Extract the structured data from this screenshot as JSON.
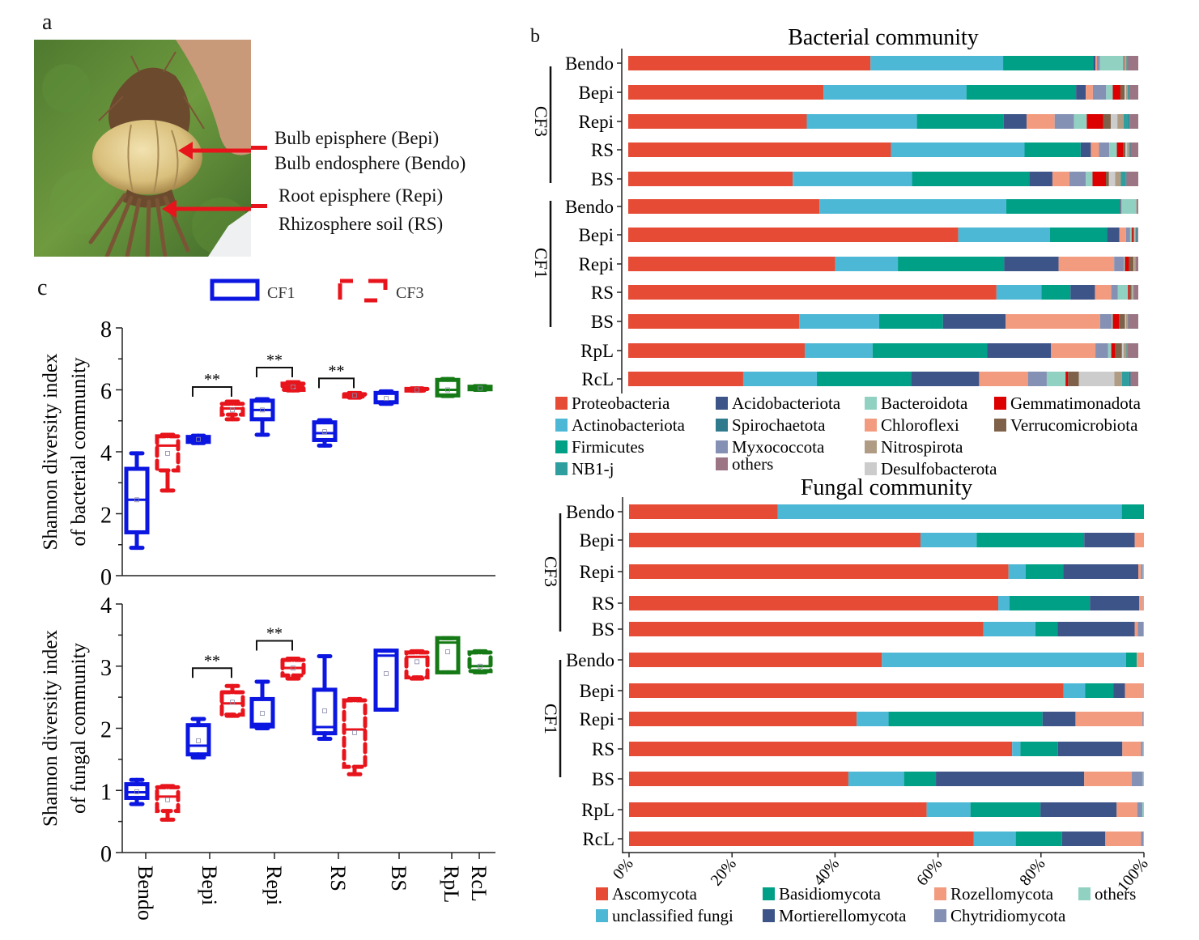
{
  "panel_a": {
    "label": "a",
    "annotations": [
      "Bulb episphere (Bepi)",
      "Bulb endosphere (Bendo)",
      "Root episphere (Repi)",
      "Rhizosphere soil (RS)"
    ],
    "photo_description": "Lily bulb with roots held by hand, green vegetation background",
    "arrow_color": "#e8141c"
  },
  "panel_b_label": "b",
  "panel_c_label": "c",
  "chart_data": [
    {
      "id": "bacterial",
      "type": "bar",
      "orientation": "horizontal-stacked-percent",
      "title": "Bacterial community",
      "categories": [
        "Bendo",
        "Bepi",
        "Repi",
        "RS",
        "BS",
        "Bendo",
        "Bepi",
        "Repi",
        "RS",
        "BS",
        "RpL",
        "RcL"
      ],
      "groups": [
        {
          "name": "CF3",
          "rows": [
            0,
            4
          ]
        },
        {
          "name": "CF1",
          "rows": [
            5,
            9
          ]
        }
      ],
      "xlim": [
        0,
        100
      ],
      "series": [
        {
          "name": "Proteobacteria",
          "color": "#e64b35",
          "values": [
            47.5,
            38.3,
            35.0,
            51.5,
            32.0,
            37.5,
            64.7,
            40.3,
            72.2,
            33.5,
            34.6,
            22.6
          ]
        },
        {
          "name": "Actinobacteriota",
          "color": "#4db8d6",
          "values": [
            26.0,
            28.0,
            21.6,
            26.2,
            23.2,
            36.6,
            18.0,
            12.2,
            8.8,
            15.7,
            13.3,
            14.5
          ]
        },
        {
          "name": "Firmicutes",
          "color": "#00a087",
          "values": [
            17.7,
            21.5,
            17.0,
            11.0,
            22.8,
            22.3,
            11.2,
            20.7,
            5.7,
            12.5,
            22.5,
            18.5
          ]
        },
        {
          "name": "Acidobacteriota",
          "color": "#3c5488",
          "values": [
            0.4,
            1.9,
            4.5,
            2.0,
            4.5,
            0.2,
            2.4,
            10.6,
            4.8,
            12.3,
            12.5,
            13.4
          ]
        },
        {
          "name": "Chloroflexi",
          "color": "#f39b7f",
          "values": [
            0.3,
            1.4,
            5.5,
            1.6,
            3.3,
            0.1,
            1.3,
            10.8,
            3.2,
            18.5,
            8.7,
            9.6
          ]
        },
        {
          "name": "Myxococcota",
          "color": "#8491b4",
          "values": [
            0.6,
            2.6,
            3.8,
            2.0,
            3.2,
            0.1,
            0.8,
            1.9,
            1.3,
            2.3,
            2.5,
            3.7
          ]
        },
        {
          "name": "Bacteroidota",
          "color": "#91d1c2",
          "values": [
            4.6,
            1.3,
            2.5,
            1.5,
            1.3,
            2.8,
            0.3,
            0.2,
            2.0,
            0.2,
            0.6,
            3.7
          ]
        },
        {
          "name": "Gemmatimonadota",
          "color": "#dc0000",
          "values": [
            0.1,
            1.5,
            3.2,
            1.3,
            2.6,
            0,
            0.2,
            0.8,
            0.3,
            1.2,
            0.8,
            0.5
          ]
        },
        {
          "name": "Verrucomicrobiota",
          "color": "#7e6148",
          "values": [
            0.1,
            0.8,
            1.5,
            0.4,
            0.6,
            0,
            0.3,
            0.9,
            0.4,
            1.2,
            1.3,
            2.1
          ]
        },
        {
          "name": "Desulfobacterota",
          "color": "#cccccc",
          "values": [
            0.1,
            0.3,
            1.3,
            0.3,
            1.2,
            0,
            0.1,
            0.1,
            0.1,
            0.2,
            0.3,
            7.0
          ]
        },
        {
          "name": "Nitrospirota",
          "color": "#b09c85",
          "values": [
            0.3,
            0.3,
            1.2,
            0.4,
            1.1,
            0.1,
            0.2,
            0.2,
            0.2,
            0.3,
            0.6,
            1.5
          ]
        },
        {
          "name": "NB1-j",
          "color": "#2e9e9e",
          "values": [
            0.2,
            0.2,
            1.0,
            0.2,
            1.0,
            0,
            0.1,
            0.1,
            0.1,
            0.1,
            0.1,
            1.4
          ]
        },
        {
          "name": "Spirochaetota",
          "color": "#2f7a8c",
          "values": [
            0.1,
            0.1,
            0.2,
            0.1,
            0.1,
            0,
            0.1,
            0,
            0,
            0,
            0,
            0.3
          ]
        },
        {
          "name": "others",
          "color": "#9c7585",
          "values": [
            2.0,
            1.8,
            1.7,
            1.5,
            2.3,
            0.3,
            0.3,
            0.5,
            0.9,
            2.0,
            2.2,
            1.5
          ]
        }
      ],
      "legend": [
        "Proteobacteria",
        "Actinobacteriota",
        "Firmicutes",
        "NB1-j",
        "Acidobacteriota",
        "Spirochaetota",
        "Myxococcota",
        "others",
        "Bacteroidota",
        "Chloroflexi",
        "Nitrospirota",
        "Desulfobacterota",
        "Gemmatimonadota",
        "Verrucomicrobiota"
      ],
      "legend_placement": "bottom"
    },
    {
      "id": "fungal",
      "type": "bar",
      "orientation": "horizontal-stacked-percent",
      "title": "Fungal community",
      "categories": [
        "Bendo",
        "Bepi",
        "Repi",
        "RS",
        "BS",
        "Bendo",
        "Bepi",
        "Repi",
        "RS",
        "BS",
        "RpL",
        "RcL"
      ],
      "groups": [
        {
          "name": "CF3",
          "rows": [
            0,
            4
          ]
        },
        {
          "name": "CF1",
          "rows": [
            5,
            9
          ]
        }
      ],
      "xlim": [
        0,
        100
      ],
      "xticks": [
        "0%",
        "20%",
        "40%",
        "60%",
        "80%",
        "100%"
      ],
      "series": [
        {
          "name": "Ascomycota",
          "color": "#e64b35",
          "values": [
            28.9,
            56.6,
            73.7,
            71.7,
            68.8,
            49.1,
            84.4,
            44.2,
            74.4,
            42.6,
            57.8,
            66.9
          ]
        },
        {
          "name": "unclassified fungi",
          "color": "#4db8d6",
          "values": [
            66.8,
            10.9,
            3.3,
            2.2,
            10.1,
            47.4,
            4.2,
            6.2,
            1.6,
            10.8,
            8.5,
            8.2
          ]
        },
        {
          "name": "Basidiomycota",
          "color": "#00a087",
          "values": [
            4.3,
            20.9,
            7.3,
            15.6,
            4.3,
            2.1,
            5.5,
            29.9,
            7.3,
            6.2,
            13.6,
            9.0
          ]
        },
        {
          "name": "Mortierellomycota",
          "color": "#3c5488",
          "values": [
            0,
            9.8,
            14.6,
            9.6,
            15.0,
            0,
            2.2,
            6.4,
            12.5,
            28.8,
            14.8,
            8.4
          ]
        },
        {
          "name": "Rozellomycota",
          "color": "#f39b7f",
          "values": [
            0,
            1.8,
            0.5,
            0.7,
            0.6,
            1.4,
            3.5,
            13.0,
            3.6,
            9.2,
            4.0,
            6.9
          ]
        },
        {
          "name": "Chytridiomycota",
          "color": "#8491b4",
          "values": [
            0,
            0,
            0.4,
            0.1,
            1.1,
            0,
            0.1,
            0.2,
            0.4,
            2.2,
            1.0,
            0.5
          ]
        },
        {
          "name": "others",
          "color": "#91d1c2",
          "values": [
            0,
            0,
            0.2,
            0.1,
            0.1,
            0,
            0.1,
            0.1,
            0.2,
            0.2,
            0.3,
            0.1
          ]
        }
      ],
      "legend": [
        "Ascomycota",
        "unclassified fungi",
        "Basidiomycota",
        "Mortierellomycota",
        "Rozellomycota",
        "Chytridiomycota",
        "others"
      ],
      "legend_placement": "bottom"
    },
    {
      "id": "shannon-bacterial",
      "type": "box",
      "ylabel": "Shannon diversity index of bacterial community",
      "ylim": [
        0,
        8
      ],
      "yticks": [
        0,
        2,
        4,
        6,
        8
      ],
      "categories": [
        "Bendo",
        "Bepi",
        "Repi",
        "RS",
        "BS",
        "RpL",
        "RcL"
      ],
      "legend": [
        {
          "name": "CF1",
          "color": "#0b16e0",
          "style": "solid"
        },
        {
          "name": "CF3",
          "color": "#e8141c",
          "style": "dashed"
        }
      ],
      "boxes": [
        {
          "category": "Bendo",
          "group": "CF1",
          "color": "#0b16e0",
          "min": 0.9,
          "q1": 1.4,
          "median": 2.45,
          "q3": 3.45,
          "max": 3.95,
          "mean": 2.45
        },
        {
          "category": "Bendo",
          "group": "CF3",
          "color": "#e8141c",
          "min": 2.75,
          "q1": 3.4,
          "median": 4.2,
          "q3": 4.5,
          "max": 4.55,
          "mean": 3.95
        },
        {
          "category": "Bepi",
          "group": "CF1",
          "color": "#0b16e0",
          "min": 4.28,
          "q1": 4.32,
          "median": 4.4,
          "q3": 4.48,
          "max": 4.52,
          "mean": 4.4
        },
        {
          "category": "Bepi",
          "group": "CF3",
          "color": "#e8141c",
          "min": 5.05,
          "q1": 5.2,
          "median": 5.4,
          "q3": 5.55,
          "max": 5.62,
          "mean": 5.35
        },
        {
          "category": "Repi",
          "group": "CF1",
          "color": "#0b16e0",
          "min": 4.55,
          "q1": 5.05,
          "median": 5.35,
          "q3": 5.65,
          "max": 5.7,
          "mean": 5.35
        },
        {
          "category": "Repi",
          "group": "CF3",
          "color": "#e8141c",
          "min": 5.98,
          "q1": 6.0,
          "median": 6.1,
          "q3": 6.2,
          "max": 6.25,
          "mean": 6.1
        },
        {
          "category": "RS",
          "group": "CF1",
          "color": "#0b16e0",
          "min": 4.2,
          "q1": 4.38,
          "median": 4.6,
          "q3": 4.95,
          "max": 5.02,
          "mean": 4.65
        },
        {
          "category": "RS",
          "group": "CF3",
          "color": "#e8141c",
          "min": 5.75,
          "q1": 5.78,
          "median": 5.82,
          "q3": 5.86,
          "max": 5.9,
          "mean": 5.82
        },
        {
          "category": "BS",
          "group": "CF1",
          "color": "#0b16e0",
          "min": 5.55,
          "q1": 5.6,
          "median": 5.6,
          "q3": 5.9,
          "max": 5.95,
          "mean": 5.72
        },
        {
          "category": "BS",
          "group": "CF3",
          "color": "#e8141c",
          "min": 5.97,
          "q1": 5.98,
          "median": 6.0,
          "q3": 6.03,
          "max": 6.05,
          "mean": 6.0
        },
        {
          "category": "RpL",
          "group": "CF",
          "color": "#157a15",
          "min": 5.8,
          "q1": 5.82,
          "median": 6.0,
          "q3": 6.32,
          "max": 6.35,
          "mean": 6.0
        },
        {
          "category": "RcL",
          "group": "CF",
          "color": "#157a15",
          "min": 6.0,
          "q1": 6.02,
          "median": 6.05,
          "q3": 6.1,
          "max": 6.12,
          "mean": 6.05
        }
      ],
      "significance": [
        {
          "between": "Bepi CF1 vs CF3",
          "label": "**"
        },
        {
          "between": "Repi CF1 vs CF3",
          "label": "**"
        },
        {
          "between": "RS CF1 vs CF3",
          "label": "**"
        }
      ]
    },
    {
      "id": "shannon-fungal",
      "type": "box",
      "ylabel": "Shannon diversity index of fungal community",
      "ylim": [
        0,
        4
      ],
      "yticks": [
        0,
        1,
        2,
        3,
        4
      ],
      "categories": [
        "Bendo",
        "Bepi",
        "Repi",
        "RS",
        "BS",
        "RpL",
        "RcL"
      ],
      "boxes": [
        {
          "category": "Bendo",
          "group": "CF1",
          "color": "#0b16e0",
          "min": 0.78,
          "q1": 0.88,
          "median": 0.97,
          "q3": 1.1,
          "max": 1.17,
          "mean": 0.98
        },
        {
          "category": "Bendo",
          "group": "CF3",
          "color": "#e8141c",
          "min": 0.53,
          "q1": 0.67,
          "median": 0.9,
          "q3": 1.05,
          "max": 1.07,
          "mean": 0.85
        },
        {
          "category": "Bepi",
          "group": "CF1",
          "color": "#0b16e0",
          "min": 1.53,
          "q1": 1.58,
          "median": 1.72,
          "q3": 2.05,
          "max": 2.15,
          "mean": 1.8
        },
        {
          "category": "Bepi",
          "group": "CF3",
          "color": "#e8141c",
          "min": 2.2,
          "q1": 2.22,
          "median": 2.4,
          "q3": 2.58,
          "max": 2.68,
          "mean": 2.42
        },
        {
          "category": "Repi",
          "group": "CF1",
          "color": "#0b16e0",
          "min": 2.0,
          "q1": 2.03,
          "median": 2.07,
          "q3": 2.47,
          "max": 2.75,
          "mean": 2.24
        },
        {
          "category": "Repi",
          "group": "CF3",
          "color": "#e8141c",
          "min": 2.8,
          "q1": 2.85,
          "median": 2.97,
          "q3": 3.1,
          "max": 3.12,
          "mean": 2.97
        },
        {
          "category": "RS",
          "group": "CF1",
          "color": "#0b16e0",
          "min": 1.83,
          "q1": 1.92,
          "median": 2.02,
          "q3": 2.62,
          "max": 3.16,
          "mean": 2.28
        },
        {
          "category": "RS",
          "group": "CF3",
          "color": "#e8141c",
          "min": 1.26,
          "q1": 1.38,
          "median": 1.98,
          "q3": 2.45,
          "max": 2.47,
          "mean": 1.93
        },
        {
          "category": "BS",
          "group": "CF1",
          "color": "#0b16e0",
          "min": 2.3,
          "q1": 2.3,
          "median": 3.17,
          "q3": 3.25,
          "max": 3.25,
          "mean": 2.88
        },
        {
          "category": "BS",
          "group": "CF3",
          "color": "#e8141c",
          "min": 2.8,
          "q1": 2.82,
          "median": 3.15,
          "q3": 3.22,
          "max": 3.24,
          "mean": 3.07
        },
        {
          "category": "RpL",
          "group": "CF",
          "color": "#157a15",
          "min": 2.9,
          "q1": 2.9,
          "median": 3.38,
          "q3": 3.45,
          "max": 3.45,
          "mean": 3.23
        },
        {
          "category": "RcL",
          "group": "CF",
          "color": "#157a15",
          "min": 2.9,
          "q1": 2.92,
          "median": 3.0,
          "q3": 3.22,
          "max": 3.24,
          "mean": 3.0
        }
      ],
      "significance": [
        {
          "between": "Bepi CF1 vs CF3",
          "label": "**"
        },
        {
          "between": "Repi CF1 vs CF3",
          "label": "**"
        }
      ]
    }
  ]
}
